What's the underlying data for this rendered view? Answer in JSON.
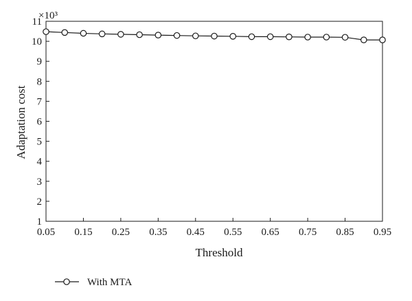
{
  "chart_data": {
    "type": "line",
    "title": "",
    "xlabel": "Threshold",
    "ylabel": "Adaptation cost",
    "y_multiplier_label": "×10³",
    "x": [
      0.05,
      0.1,
      0.15,
      0.2,
      0.25,
      0.3,
      0.35,
      0.4,
      0.45,
      0.5,
      0.55,
      0.6,
      0.65,
      0.7,
      0.75,
      0.8,
      0.85,
      0.9,
      0.95
    ],
    "series": [
      {
        "name": "With MTA",
        "values": [
          10.48,
          10.44,
          10.4,
          10.37,
          10.35,
          10.33,
          10.31,
          10.29,
          10.27,
          10.26,
          10.25,
          10.23,
          10.23,
          10.22,
          10.21,
          10.21,
          10.2,
          10.07,
          10.07
        ],
        "color": "#1a1a1a",
        "marker": "circle-open"
      }
    ],
    "xlim": [
      0.05,
      0.95
    ],
    "ylim": [
      1,
      11
    ],
    "x_ticks": [
      "0.05",
      "0.15",
      "0.25",
      "0.35",
      "0.45",
      "0.55",
      "0.65",
      "0.75",
      "0.85",
      "0.95"
    ],
    "y_ticks": [
      "1",
      "2",
      "3",
      "4",
      "5",
      "6",
      "7",
      "8",
      "9",
      "10",
      "11"
    ],
    "grid": false,
    "legend_position": "bottom-left"
  }
}
